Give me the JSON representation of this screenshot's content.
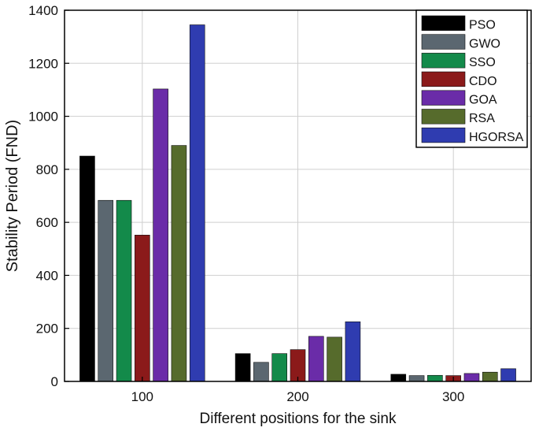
{
  "chart_data": {
    "type": "bar",
    "title": "",
    "xlabel": "Different positions for the sink",
    "ylabel": "Stability Period (FND)",
    "categories": [
      "100",
      "200",
      "300"
    ],
    "ylim": [
      0,
      1400
    ],
    "yticks": [
      0,
      200,
      400,
      600,
      800,
      1000,
      1200,
      1400
    ],
    "grid": true,
    "legend_position": "top-right",
    "series": [
      {
        "name": "PSO",
        "color": "#000000",
        "values": [
          850,
          105,
          27
        ]
      },
      {
        "name": "GWO",
        "color": "#5b6770",
        "values": [
          683,
          72,
          22
        ]
      },
      {
        "name": "SSO",
        "color": "#138a4a",
        "values": [
          683,
          105,
          23
        ]
      },
      {
        "name": "CDO",
        "color": "#8b1a1a",
        "values": [
          552,
          120,
          22
        ]
      },
      {
        "name": "GOA",
        "color": "#6a2ca8",
        "values": [
          1103,
          170,
          30
        ]
      },
      {
        "name": "RSA",
        "color": "#566b2c",
        "values": [
          890,
          167,
          35
        ]
      },
      {
        "name": "HGORSA",
        "color": "#2f3cb0",
        "values": [
          1345,
          225,
          48
        ]
      }
    ]
  }
}
